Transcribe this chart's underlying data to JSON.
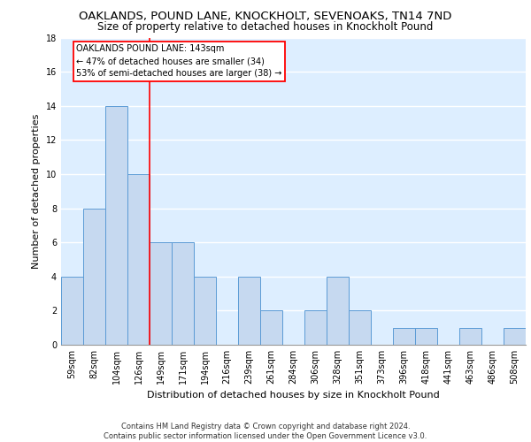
{
  "title1": "OAKLANDS, POUND LANE, KNOCKHOLT, SEVENOAKS, TN14 7ND",
  "title2": "Size of property relative to detached houses in Knockholt Pound",
  "xlabel": "Distribution of detached houses by size in Knockholt Pound",
  "ylabel": "Number of detached properties",
  "categories": [
    "59sqm",
    "82sqm",
    "104sqm",
    "126sqm",
    "149sqm",
    "171sqm",
    "194sqm",
    "216sqm",
    "239sqm",
    "261sqm",
    "284sqm",
    "306sqm",
    "328sqm",
    "351sqm",
    "373sqm",
    "396sqm",
    "418sqm",
    "441sqm",
    "463sqm",
    "486sqm",
    "508sqm"
  ],
  "values": [
    4,
    8,
    14,
    10,
    6,
    6,
    4,
    0,
    4,
    2,
    0,
    2,
    4,
    2,
    0,
    1,
    1,
    0,
    1,
    0,
    1
  ],
  "bar_color": "#c6d9f0",
  "bar_edge_color": "#5b9bd5",
  "background_color": "#ddeeff",
  "grid_color": "#ffffff",
  "vline_x_index": 3.5,
  "vline_color": "red",
  "annotation_box_text": "OAKLANDS POUND LANE: 143sqm\n← 47% of detached houses are smaller (34)\n53% of semi-detached houses are larger (38) →",
  "ylim": [
    0,
    18
  ],
  "yticks": [
    0,
    2,
    4,
    6,
    8,
    10,
    12,
    14,
    16,
    18
  ],
  "footnote": "Contains HM Land Registry data © Crown copyright and database right 2024.\nContains public sector information licensed under the Open Government Licence v3.0.",
  "title1_fontsize": 9.5,
  "title2_fontsize": 8.5,
  "xlabel_fontsize": 8,
  "ylabel_fontsize": 8,
  "tick_fontsize": 7,
  "annot_fontsize": 7,
  "footnote_fontsize": 6
}
